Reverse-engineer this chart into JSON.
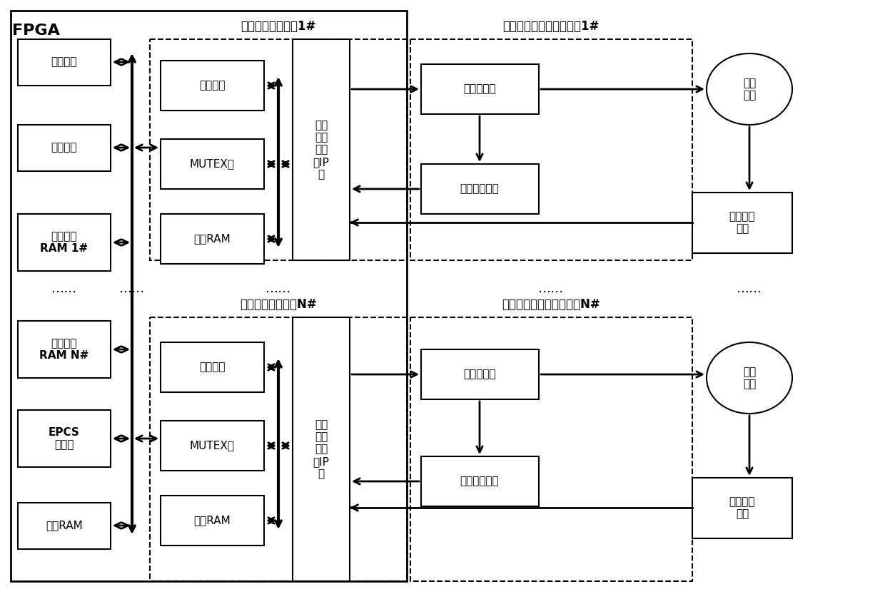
{
  "fpga_label": "FPGA",
  "module1_label": "电机驱动控制模块1#",
  "moduleN_label": "电机驱动控制模块N#",
  "circuit1_label": "功率驱动与信号采集电路1#",
  "circuitN_label": "功率驱动与信号采集电路N#",
  "net_comm": "网络通讯",
  "main_proc": "主处理器",
  "shared_ram1": "片上共享\nRAM 1#",
  "shared_ramN": "片上共享\nRAM N#",
  "epcs": "EPCS\n控制器",
  "on_chip_ram": "片上RAM",
  "slave_proc1": "从处理器",
  "mutex1": "MUTEX核",
  "onchip_ram1": "片上RAM",
  "slave_procN": "从处理器",
  "mutexN": "MUTEX核",
  "onchip_ramN": "片上RAM",
  "current_loop1": "电流\n环伺\n服控\n制IP\n核",
  "current_loopN": "电流\n环伺\n服控\n制IP\n核",
  "power_inv1": "功率逆变器",
  "volt_curr1": "电压电流检测",
  "power_invN": "功率逆变器",
  "volt_currN": "电压电流检测",
  "servo_motor1": "伺服\n电机",
  "servo_motorN": "伺服\n电机",
  "pos_feedback1": "位置反馈\n元件",
  "pos_feedbackN": "位置反馈\n元件",
  "dots": "……"
}
